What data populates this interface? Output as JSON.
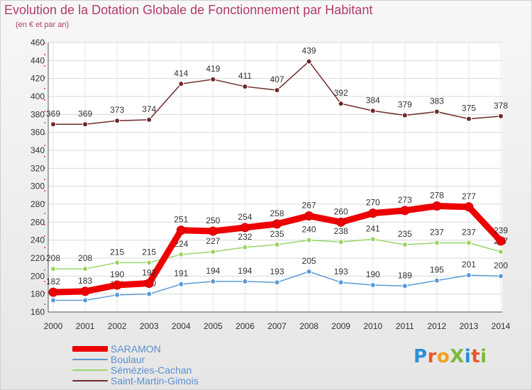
{
  "title": "Evolution de la Dotation Globale de Fonctionnement par Habitant",
  "subtitle": "(en € et par an)",
  "logo": {
    "text": "ProXiti",
    "colors": [
      "#2a8fd6",
      "#e8572a",
      "#f0a020",
      "#7cb83a",
      "#2a8fd6",
      "#e8572a",
      "#7cb83a"
    ]
  },
  "chart_data": {
    "type": "line",
    "x": [
      "2000",
      "2001",
      "2002",
      "2003",
      "2004",
      "2005",
      "2006",
      "2007",
      "2008",
      "2009",
      "2010",
      "2011",
      "2012",
      "2013",
      "2014"
    ],
    "ylim": [
      160,
      460
    ],
    "yticks": [
      "160",
      "180",
      "200",
      "220",
      "240",
      "260",
      "280",
      "300",
      "320",
      "340",
      "360",
      "380",
      "400",
      "420",
      "440",
      "460"
    ],
    "grid": true,
    "legend_position": "bottom-left",
    "series": [
      {
        "name": "Saint-Martin-Gimois",
        "color": "#6e2a2a",
        "values": [
          369,
          369,
          373,
          374,
          414,
          419,
          411,
          407,
          439,
          392,
          384,
          379,
          383,
          375,
          378
        ]
      },
      {
        "name": "Sémézies-Cachan",
        "color": "#99d66a",
        "values": [
          208,
          208,
          215,
          215,
          224,
          227,
          232,
          235,
          240,
          238,
          241,
          235,
          237,
          237,
          227
        ]
      },
      {
        "name": "Boulaur",
        "color": "#5b9bd5",
        "values": [
          173,
          173,
          179,
          180,
          191,
          194,
          194,
          193,
          205,
          193,
          190,
          189,
          195,
          201,
          200
        ]
      },
      {
        "name": "SARAMON",
        "color": "#ee0000",
        "values": [
          182,
          183,
          190,
          192,
          251,
          250,
          254,
          258,
          267,
          260,
          270,
          273,
          278,
          277,
          239
        ]
      }
    ],
    "value_labels": {
      "Saint-Martin-Gimois": [
        "369",
        "369",
        "373",
        "374",
        "414",
        "419",
        "411",
        "407",
        "439",
        "392",
        "384",
        "379",
        "383",
        "375",
        "378"
      ],
      "Sémézies-Cachan": [
        "208",
        "208",
        "215",
        "215",
        "224",
        "227",
        "232",
        "235",
        "240",
        "238",
        "241",
        "235",
        "237",
        "237",
        "227"
      ],
      "Boulaur": [
        "",
        "",
        "179",
        "180",
        "191",
        "194",
        "194",
        "193",
        "205",
        "193",
        "190",
        "189",
        "195",
        "201",
        "200"
      ],
      "SARAMON": [
        "182",
        "183",
        "190",
        "192",
        "251",
        "250",
        "254",
        "258",
        "267",
        "260",
        "270",
        "273",
        "278",
        "277",
        "239"
      ]
    },
    "legend": [
      {
        "name": "SARAMON",
        "color": "#ee0000"
      },
      {
        "name": "Boulaur",
        "color": "#5b9bd5"
      },
      {
        "name": "Sémézies-Cachan",
        "color": "#99d66a"
      },
      {
        "name": "Saint-Martin-Gimois",
        "color": "#6e2a2a"
      }
    ]
  }
}
